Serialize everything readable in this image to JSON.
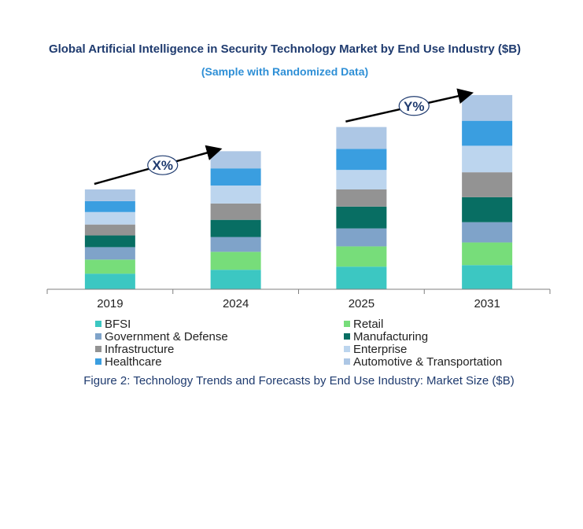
{
  "chart_data": {
    "type": "bar",
    "stacked": true,
    "title": "Global Artificial Intelligence in Security Technology Market by End Use Industry ($B)",
    "subtitle": "(Sample with Randomized Data)",
    "categories": [
      "2019",
      "2024",
      "2025",
      "2031"
    ],
    "series": [
      {
        "name": "BFSI",
        "color": "#3cc7c2",
        "values": [
          10,
          12.5,
          14.5,
          15.5
        ]
      },
      {
        "name": "Retail",
        "color": "#77dd7a",
        "values": [
          9,
          11.5,
          13,
          14.5
        ]
      },
      {
        "name": "Government & Defense",
        "color": "#7fa3c9",
        "values": [
          8,
          9.5,
          11.5,
          13
        ]
      },
      {
        "name": "Manufacturing",
        "color": "#086e63",
        "values": [
          7.5,
          11,
          14,
          16
        ]
      },
      {
        "name": "Infrastructure",
        "color": "#939393",
        "values": [
          7,
          10.5,
          11,
          16
        ]
      },
      {
        "name": "Enterprise",
        "color": "#bcd5ee",
        "values": [
          8,
          11.5,
          12.5,
          17
        ]
      },
      {
        "name": "Healthcare",
        "color": "#3a9ee0",
        "values": [
          7,
          11,
          13.5,
          16
        ]
      },
      {
        "name": "Automotive & Transportation",
        "color": "#adc7e5",
        "values": [
          7.5,
          11,
          14,
          16.5
        ]
      }
    ],
    "ylim": [
      0,
      130
    ],
    "grid": false,
    "legend_position": "bottom",
    "annotations": [
      {
        "text": "X%",
        "from": "2019",
        "to": "2024"
      },
      {
        "text": "Y%",
        "from": "2025",
        "to": "2031"
      }
    ],
    "caption": "Figure 2: Technology Trends and Forecasts by End Use Industry:  Market Size ($B)"
  }
}
